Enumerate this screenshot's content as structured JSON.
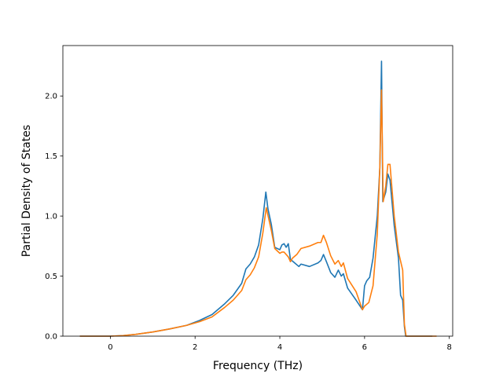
{
  "chart_data": {
    "type": "line",
    "title": "",
    "xlabel": "Frequency (THz)",
    "ylabel": "Partial Density of States",
    "xlim": [
      -1.12,
      8.08
    ],
    "ylim": [
      0.0,
      2.42
    ],
    "x_ticks": [
      0,
      2,
      4,
      6,
      8
    ],
    "x_tick_labels": [
      "0",
      "2",
      "4",
      "6",
      "8"
    ],
    "y_ticks": [
      0.0,
      0.5,
      1.0,
      1.5,
      2.0
    ],
    "y_tick_labels": [
      "0.0",
      "0.5",
      "1.0",
      "1.5",
      "2.0"
    ],
    "grid": false,
    "legend": "none",
    "series": [
      {
        "color": "#1f77b4",
        "points": [
          [
            -0.72,
            0.0
          ],
          [
            0.0,
            0.0
          ],
          [
            0.3,
            0.005
          ],
          [
            0.6,
            0.015
          ],
          [
            1.0,
            0.035
          ],
          [
            1.4,
            0.06
          ],
          [
            1.8,
            0.09
          ],
          [
            2.1,
            0.13
          ],
          [
            2.4,
            0.18
          ],
          [
            2.7,
            0.27
          ],
          [
            2.9,
            0.34
          ],
          [
            3.1,
            0.44
          ],
          [
            3.2,
            0.56
          ],
          [
            3.3,
            0.6
          ],
          [
            3.4,
            0.66
          ],
          [
            3.5,
            0.76
          ],
          [
            3.6,
            0.98
          ],
          [
            3.67,
            1.2
          ],
          [
            3.72,
            1.06
          ],
          [
            3.8,
            0.93
          ],
          [
            3.88,
            0.74
          ],
          [
            4.0,
            0.72
          ],
          [
            4.05,
            0.76
          ],
          [
            4.1,
            0.77
          ],
          [
            4.15,
            0.74
          ],
          [
            4.2,
            0.77
          ],
          [
            4.25,
            0.64
          ],
          [
            4.35,
            0.61
          ],
          [
            4.45,
            0.58
          ],
          [
            4.5,
            0.6
          ],
          [
            4.7,
            0.58
          ],
          [
            4.9,
            0.61
          ],
          [
            4.97,
            0.63
          ],
          [
            5.03,
            0.68
          ],
          [
            5.1,
            0.62
          ],
          [
            5.2,
            0.53
          ],
          [
            5.3,
            0.49
          ],
          [
            5.38,
            0.55
          ],
          [
            5.45,
            0.5
          ],
          [
            5.5,
            0.52
          ],
          [
            5.6,
            0.4
          ],
          [
            5.8,
            0.3
          ],
          [
            5.95,
            0.22
          ],
          [
            6.0,
            0.42
          ],
          [
            6.05,
            0.46
          ],
          [
            6.12,
            0.49
          ],
          [
            6.2,
            0.65
          ],
          [
            6.3,
            1.0
          ],
          [
            6.36,
            1.4
          ],
          [
            6.4,
            2.29
          ],
          [
            6.43,
            1.12
          ],
          [
            6.5,
            1.2
          ],
          [
            6.55,
            1.35
          ],
          [
            6.6,
            1.3
          ],
          [
            6.7,
            0.92
          ],
          [
            6.8,
            0.65
          ],
          [
            6.85,
            0.34
          ],
          [
            6.9,
            0.3
          ],
          [
            6.94,
            0.08
          ],
          [
            6.97,
            0.0
          ],
          [
            7.6,
            0.0
          ]
        ]
      },
      {
        "color": "#ff7f0e",
        "points": [
          [
            -0.72,
            0.0
          ],
          [
            0.0,
            0.0
          ],
          [
            0.3,
            0.005
          ],
          [
            0.6,
            0.015
          ],
          [
            1.0,
            0.035
          ],
          [
            1.4,
            0.06
          ],
          [
            1.8,
            0.09
          ],
          [
            2.1,
            0.12
          ],
          [
            2.4,
            0.16
          ],
          [
            2.7,
            0.24
          ],
          [
            2.9,
            0.3
          ],
          [
            3.1,
            0.38
          ],
          [
            3.2,
            0.47
          ],
          [
            3.3,
            0.51
          ],
          [
            3.4,
            0.57
          ],
          [
            3.5,
            0.66
          ],
          [
            3.6,
            0.86
          ],
          [
            3.68,
            1.07
          ],
          [
            3.73,
            0.99
          ],
          [
            3.8,
            0.88
          ],
          [
            3.88,
            0.73
          ],
          [
            4.0,
            0.69
          ],
          [
            4.05,
            0.7
          ],
          [
            4.1,
            0.7
          ],
          [
            4.2,
            0.66
          ],
          [
            4.25,
            0.62
          ],
          [
            4.3,
            0.65
          ],
          [
            4.4,
            0.68
          ],
          [
            4.5,
            0.73
          ],
          [
            4.7,
            0.75
          ],
          [
            4.9,
            0.78
          ],
          [
            4.97,
            0.78
          ],
          [
            5.03,
            0.84
          ],
          [
            5.1,
            0.78
          ],
          [
            5.2,
            0.67
          ],
          [
            5.3,
            0.6
          ],
          [
            5.38,
            0.63
          ],
          [
            5.45,
            0.58
          ],
          [
            5.5,
            0.61
          ],
          [
            5.6,
            0.48
          ],
          [
            5.8,
            0.37
          ],
          [
            5.95,
            0.22
          ],
          [
            6.0,
            0.25
          ],
          [
            6.1,
            0.28
          ],
          [
            6.2,
            0.42
          ],
          [
            6.3,
            0.85
          ],
          [
            6.36,
            1.4
          ],
          [
            6.4,
            2.05
          ],
          [
            6.44,
            1.12
          ],
          [
            6.5,
            1.25
          ],
          [
            6.55,
            1.43
          ],
          [
            6.6,
            1.43
          ],
          [
            6.7,
            1.0
          ],
          [
            6.8,
            0.7
          ],
          [
            6.9,
            0.55
          ],
          [
            6.94,
            0.1
          ],
          [
            6.98,
            0.0
          ],
          [
            7.7,
            0.0
          ]
        ]
      }
    ]
  }
}
